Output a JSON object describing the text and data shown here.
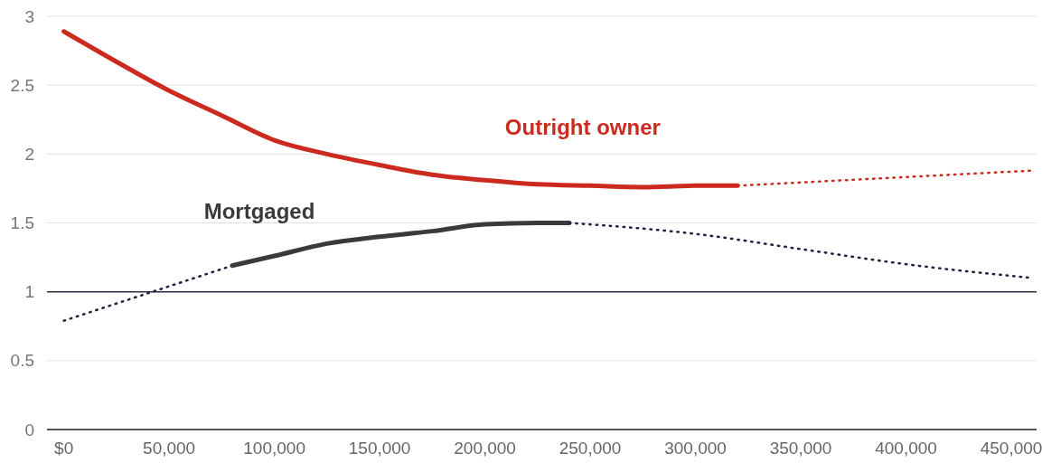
{
  "chart_data": {
    "type": "line",
    "xlim": [
      -8000,
      462000
    ],
    "ylim": [
      0,
      3
    ],
    "xticks": [
      {
        "value": 0,
        "label": "$0"
      },
      {
        "value": 50000,
        "label": "50,000"
      },
      {
        "value": 100000,
        "label": "100,000"
      },
      {
        "value": 150000,
        "label": "150,000"
      },
      {
        "value": 200000,
        "label": "200,000"
      },
      {
        "value": 250000,
        "label": "250,000"
      },
      {
        "value": 300000,
        "label": "300,000"
      },
      {
        "value": 350000,
        "label": "350,000"
      },
      {
        "value": 400000,
        "label": "400,000"
      },
      {
        "value": 450000,
        "label": "450,000"
      }
    ],
    "yticks": [
      0,
      0.5,
      1,
      1.5,
      2,
      2.5,
      3
    ],
    "grid": "y",
    "ref_lines": [
      {
        "axis": "y",
        "value": 1,
        "color": "#2b2d4a"
      }
    ],
    "series": [
      {
        "name": "Outright owner",
        "color": "#cc2a1f",
        "line_style": "solid",
        "x": [
          0,
          25000,
          50000,
          75000,
          100000,
          125000,
          150000,
          175000,
          200000,
          225000,
          250000,
          275000,
          300000,
          320000
        ],
        "values": [
          2.89,
          2.67,
          2.46,
          2.28,
          2.1,
          2.0,
          1.92,
          1.85,
          1.81,
          1.78,
          1.77,
          1.76,
          1.77,
          1.77
        ]
      },
      {
        "color": "#cc2a1f",
        "line_style": "dotted",
        "x": [
          320000,
          460000
        ],
        "values": [
          1.77,
          1.88
        ]
      },
      {
        "color": "#1f2340",
        "line_style": "dotted",
        "x": [
          0,
          80000
        ],
        "values": [
          0.79,
          1.19
        ]
      },
      {
        "name": "Mortgaged",
        "color": "#3a3a3a",
        "line_style": "solid",
        "x": [
          80000,
          100000,
          125000,
          150000,
          175000,
          200000,
          225000,
          240000
        ],
        "values": [
          1.19,
          1.26,
          1.35,
          1.4,
          1.44,
          1.49,
          1.5,
          1.5
        ]
      },
      {
        "color": "#1f2340",
        "line_style": "dotted",
        "x": [
          240000,
          300000,
          350000,
          400000,
          460000
        ],
        "values": [
          1.5,
          1.42,
          1.31,
          1.2,
          1.1
        ]
      }
    ]
  }
}
